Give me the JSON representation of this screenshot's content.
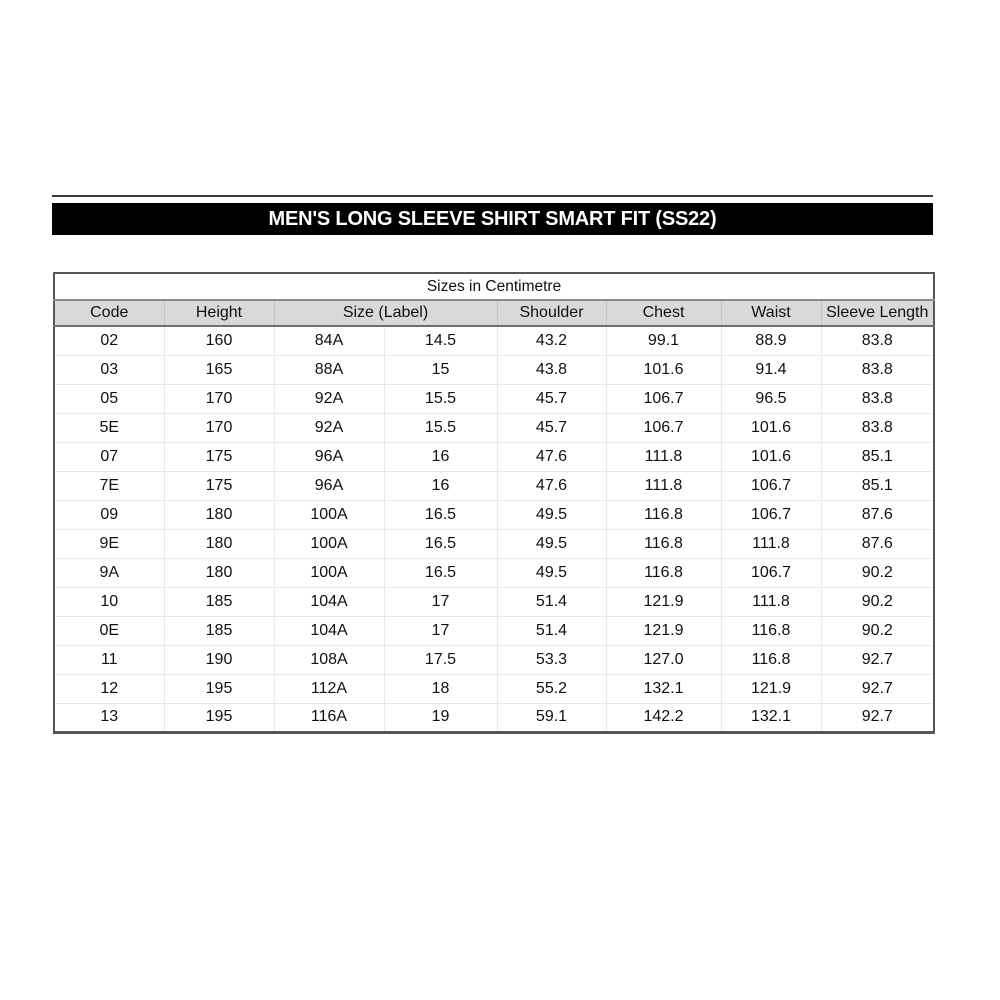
{
  "chart_data": {
    "type": "table",
    "title": "MEN'S LONG SLEEVE SHIRT SMART FIT (SS22)",
    "units_caption": "Sizes in Centimetre",
    "column_headers": [
      "Code",
      "Height",
      "Size (Label)",
      "Shoulder",
      "Chest",
      "Waist",
      "Sleeve Length"
    ],
    "size_label_spans_two_subcolumns": true,
    "rows": [
      [
        "02",
        "160",
        "84A",
        "14.5",
        "43.2",
        "99.1",
        "88.9",
        "83.8"
      ],
      [
        "03",
        "165",
        "88A",
        "15",
        "43.8",
        "101.6",
        "91.4",
        "83.8"
      ],
      [
        "05",
        "170",
        "92A",
        "15.5",
        "45.7",
        "106.7",
        "96.5",
        "83.8"
      ],
      [
        "5E",
        "170",
        "92A",
        "15.5",
        "45.7",
        "106.7",
        "101.6",
        "83.8"
      ],
      [
        "07",
        "175",
        "96A",
        "16",
        "47.6",
        "111.8",
        "101.6",
        "85.1"
      ],
      [
        "7E",
        "175",
        "96A",
        "16",
        "47.6",
        "111.8",
        "106.7",
        "85.1"
      ],
      [
        "09",
        "180",
        "100A",
        "16.5",
        "49.5",
        "116.8",
        "106.7",
        "87.6"
      ],
      [
        "9E",
        "180",
        "100A",
        "16.5",
        "49.5",
        "116.8",
        "111.8",
        "87.6"
      ],
      [
        "9A",
        "180",
        "100A",
        "16.5",
        "49.5",
        "116.8",
        "106.7",
        "90.2"
      ],
      [
        "10",
        "185",
        "104A",
        "17",
        "51.4",
        "121.9",
        "111.8",
        "90.2"
      ],
      [
        "0E",
        "185",
        "104A",
        "17",
        "51.4",
        "121.9",
        "116.8",
        "90.2"
      ],
      [
        "11",
        "190",
        "108A",
        "17.5",
        "53.3",
        "127.0",
        "116.8",
        "92.7"
      ],
      [
        "12",
        "195",
        "112A",
        "18",
        "55.2",
        "132.1",
        "121.9",
        "92.7"
      ],
      [
        "13",
        "195",
        "116A",
        "19",
        "59.1",
        "142.2",
        "132.1",
        "92.7"
      ]
    ]
  },
  "colors": {
    "title_bar_bg": "#000000",
    "title_bar_text": "#ffffff",
    "header_row_bg": "#d9d9d9",
    "grid_line": "#e9e9e9",
    "outer_border": "#565656",
    "text": "#111111"
  }
}
